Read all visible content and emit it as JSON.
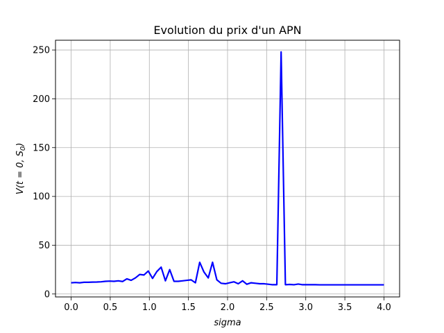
{
  "chart_data": {
    "type": "line",
    "title": "Evolution du prix d'un APN",
    "xlabel": "sigma",
    "ylabel": "V(t = 0, S0)",
    "xlim": [
      -0.2,
      4.2
    ],
    "ylim": [
      -3,
      260
    ],
    "xticks": [
      0.0,
      0.5,
      1.0,
      1.5,
      2.0,
      2.5,
      3.0,
      3.5,
      4.0
    ],
    "xtick_labels": [
      "0.0",
      "0.5",
      "1.0",
      "1.5",
      "2.0",
      "2.5",
      "3.0",
      "3.5",
      "4.0"
    ],
    "yticks": [
      0,
      50,
      100,
      150,
      200,
      250
    ],
    "ytick_labels": [
      "0",
      "50",
      "100",
      "150",
      "200",
      "250"
    ],
    "grid": true,
    "series": [
      {
        "color": "#0000ff",
        "x": [
          0.0,
          0.0548,
          0.1096,
          0.1644,
          0.2192,
          0.274,
          0.3288,
          0.3836,
          0.4384,
          0.4932,
          0.548,
          0.6027,
          0.6575,
          0.7123,
          0.7671,
          0.8219,
          0.8767,
          0.9315,
          0.9863,
          1.0411,
          1.0959,
          1.1507,
          1.2055,
          1.2603,
          1.3151,
          1.3699,
          1.4247,
          1.4795,
          1.5342,
          1.589,
          1.6438,
          1.6986,
          1.7534,
          1.8082,
          1.863,
          1.9178,
          1.9726,
          2.0274,
          2.0822,
          2.137,
          2.1918,
          2.2466,
          2.3014,
          2.3562,
          2.411,
          2.4658,
          2.5205,
          2.5753,
          2.6301,
          2.6849,
          2.7397,
          2.7945,
          2.8493,
          2.9041,
          2.9589,
          3.0137,
          3.0685,
          3.1233,
          3.1781,
          3.2329,
          3.2877,
          3.3425,
          3.3973,
          3.4521,
          3.5068,
          3.5616,
          3.6164,
          3.6712,
          3.726,
          3.7808,
          3.8356,
          3.8904,
          3.9452,
          4.0
        ],
        "y": [
          11.5,
          11.8,
          11.5,
          12.0,
          12.0,
          12.2,
          12.3,
          12.5,
          13.0,
          13.2,
          13.0,
          13.5,
          12.8,
          15.5,
          14.0,
          16.5,
          20.0,
          19.5,
          23.5,
          16.0,
          23.0,
          27.5,
          13.5,
          25.0,
          13.0,
          13.0,
          13.5,
          14.0,
          14.5,
          11.5,
          32.5,
          22.5,
          16.5,
          32.5,
          14.5,
          11.0,
          10.5,
          11.5,
          12.5,
          10.5,
          13.5,
          10.0,
          11.5,
          11.0,
          10.5,
          10.5,
          10.0,
          9.5,
          9.5,
          248.0,
          9.5,
          9.8,
          9.5,
          10.2,
          9.5,
          9.5,
          9.5,
          9.5,
          9.4,
          9.4,
          9.4,
          9.4,
          9.4,
          9.4,
          9.4,
          9.4,
          9.4,
          9.4,
          9.4,
          9.4,
          9.4,
          9.4,
          9.4,
          9.4
        ]
      }
    ]
  }
}
